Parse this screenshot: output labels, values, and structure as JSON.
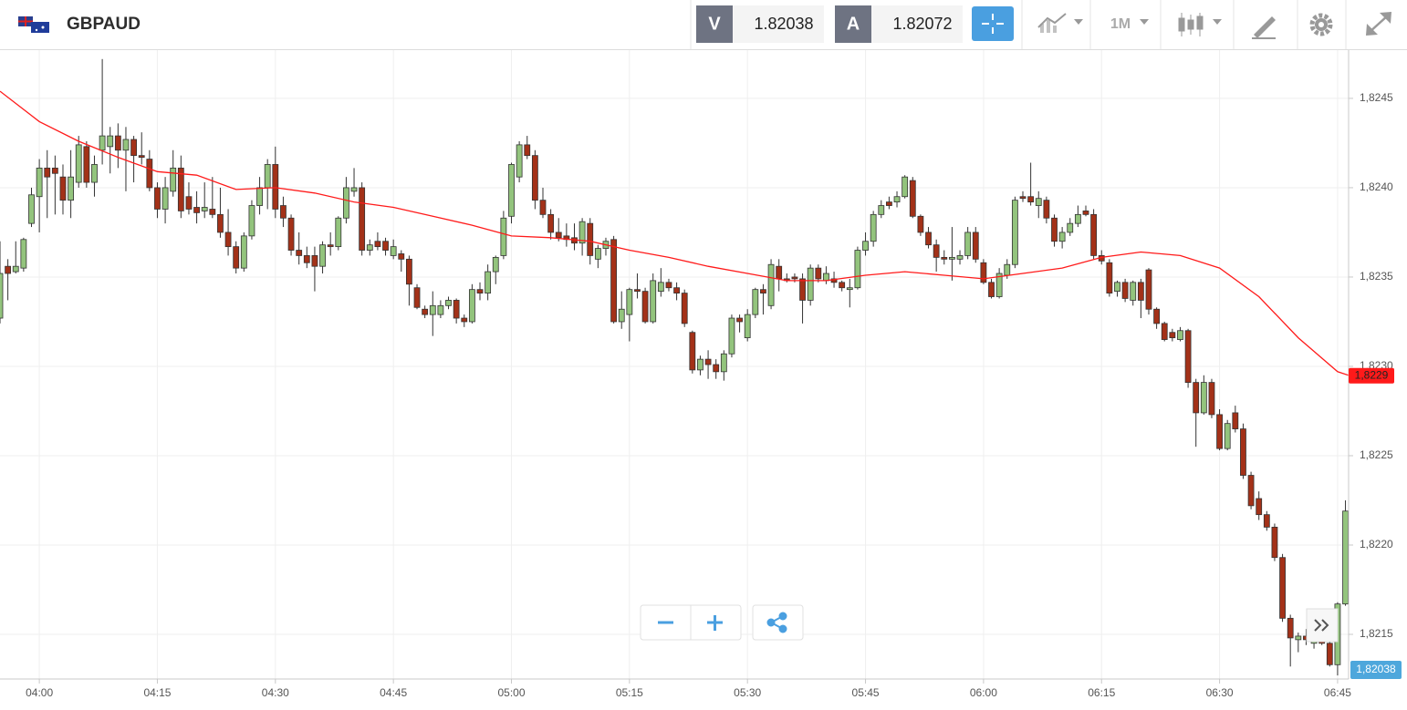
{
  "header": {
    "symbol": "GBPAUD",
    "bid_label": "V",
    "bid": "1.82038",
    "ask_label": "A",
    "ask": "1.82072",
    "timeframe": "1M"
  },
  "chart_data": {
    "type": "candlestick",
    "xlim": [
      235,
      406.4
    ],
    "ylim": [
      1.82125,
      1.82477
    ],
    "xticks": [
      {
        "value": 240,
        "label": "04:00"
      },
      {
        "value": 255,
        "label": "04:15"
      },
      {
        "value": 270,
        "label": "04:30"
      },
      {
        "value": 285,
        "label": "04:45"
      },
      {
        "value": 300,
        "label": "05:00"
      },
      {
        "value": 315,
        "label": "05:15"
      },
      {
        "value": 330,
        "label": "05:30"
      },
      {
        "value": 345,
        "label": "05:45"
      },
      {
        "value": 360,
        "label": "06:00"
      },
      {
        "value": 375,
        "label": "06:15"
      },
      {
        "value": 390,
        "label": "06:30"
      },
      {
        "value": 405,
        "label": "06:45"
      }
    ],
    "yticks": [
      {
        "value": 1.8215,
        "label": "1,8215"
      },
      {
        "value": 1.822,
        "label": "1,8220"
      },
      {
        "value": 1.8225,
        "label": "1,8225"
      },
      {
        "value": 1.823,
        "label": "1,8230"
      },
      {
        "value": 1.8235,
        "label": "1,8235"
      },
      {
        "value": 1.824,
        "label": "1,8240"
      },
      {
        "value": 1.8245,
        "label": "1,8245"
      }
    ],
    "grid": true,
    "up_color": "#93c47d",
    "down_color": "#a33118",
    "x": [
      235,
      236,
      237,
      238,
      239,
      240,
      241,
      242,
      243,
      244,
      245,
      246,
      247,
      248,
      249,
      250,
      251,
      252,
      253,
      254,
      255,
      256,
      257,
      258,
      259,
      260,
      261,
      262,
      263,
      264,
      265,
      266,
      267,
      268,
      269,
      270,
      271,
      272,
      273,
      274,
      275,
      276,
      277,
      278,
      279,
      280,
      281,
      282,
      283,
      284,
      285,
      286,
      287,
      288,
      289,
      290,
      291,
      292,
      293,
      294,
      295,
      296,
      297,
      298,
      299,
      300,
      301,
      302,
      303,
      304,
      305,
      306,
      307,
      308,
      309,
      310,
      311,
      312,
      313,
      314,
      315,
      316,
      317,
      318,
      319,
      320,
      321,
      322,
      323,
      324,
      325,
      326,
      327,
      328,
      329,
      330,
      331,
      332,
      333,
      334,
      335,
      336,
      337,
      338,
      339,
      340,
      341,
      342,
      343,
      344,
      345,
      346,
      347,
      348,
      349,
      350,
      351,
      352,
      353,
      354,
      355,
      356,
      357,
      358,
      359,
      360,
      361,
      362,
      363,
      364,
      365,
      366,
      367,
      368,
      369,
      370,
      371,
      372,
      373,
      374,
      375,
      376,
      377,
      378,
      379,
      380,
      381,
      382,
      383,
      384,
      385,
      386,
      387,
      388,
      389,
      390,
      391,
      392,
      393,
      394,
      395,
      396,
      397,
      398,
      399,
      400,
      401,
      402,
      403,
      404,
      405,
      406
    ],
    "open": [
      1.82327,
      1.82356,
      1.82353,
      1.82355,
      1.8238,
      1.82395,
      1.82411,
      1.82411,
      1.82406,
      1.82393,
      1.82403,
      1.82423,
      1.82403,
      1.82421,
      1.82423,
      1.82429,
      1.82421,
      1.82427,
      1.82418,
      1.82416,
      1.824,
      1.82388,
      1.82398,
      1.82411,
      1.82395,
      1.82389,
      1.82387,
      1.82388,
      1.82385,
      1.82375,
      1.82367,
      1.82355,
      1.82373,
      1.8239,
      1.824,
      1.82413,
      1.8239,
      1.82383,
      1.82365,
      1.82362,
      1.82362,
      1.82356,
      1.82368,
      1.82367,
      1.82383,
      1.82398,
      1.824,
      1.82365,
      1.8237,
      1.8237,
      1.82362,
      1.82363,
      1.8236,
      1.82344,
      1.82332,
      1.82329,
      1.82329,
      1.82334,
      1.82337,
      1.82327,
      1.82325,
      1.82343,
      1.82341,
      1.82353,
      1.82362,
      1.82384,
      1.82406,
      1.82424,
      1.82418,
      1.82393,
      1.82385,
      1.82375,
      1.82373,
      1.82372,
      1.82369,
      1.8238,
      1.8236,
      1.82366,
      1.82371,
      1.82325,
      1.82329,
      1.82343,
      1.82342,
      1.82325,
      1.82342,
      1.82347,
      1.82344,
      1.82341,
      1.82319,
      1.82298,
      1.82304,
      1.82301,
      1.82297,
      1.82307,
      1.82327,
      1.82316,
      1.82329,
      1.82343,
      1.82334,
      1.82356,
      1.82349,
      1.8235,
      1.82349,
      1.82337,
      1.82355,
      1.82348,
      1.82349,
      1.82347,
      1.82343,
      1.82344,
      1.82365,
      1.8237,
      1.82385,
      1.82392,
      1.82392,
      1.82395,
      1.82404,
      1.82384,
      1.82375,
      1.82368,
      1.82361,
      1.8236,
      1.8236,
      1.82362,
      1.82375,
      1.82358,
      1.82347,
      1.82339,
      1.82351,
      1.82357,
      1.82395,
      1.82395,
      1.8239,
      1.82393,
      1.82383,
      1.8237,
      1.82375,
      1.8238,
      1.82387,
      1.82385,
      1.82362,
      1.82358,
      1.82342,
      1.82347,
      1.82337,
      1.82347,
      1.82354,
      1.82332,
      1.82324,
      1.82319,
      1.82315,
      1.8232,
      1.82291,
      1.82274,
      1.82291,
      1.82273,
      1.82254,
      1.82274,
      1.82265,
      1.82239,
      1.82226,
      1.82217,
      1.8221,
      1.82193,
      1.82159,
      1.82147,
      1.82149,
      1.82145,
      1.82148,
      1.82145,
      1.82133,
      1.82167
    ],
    "high": [
      1.8237,
      1.8236,
      1.8237,
      1.82372,
      1.824,
      1.82416,
      1.82421,
      1.82418,
      1.82413,
      1.82421,
      1.82429,
      1.82426,
      1.82418,
      1.82472,
      1.82434,
      1.82436,
      1.82434,
      1.82429,
      1.82431,
      1.82421,
      1.82403,
      1.82406,
      1.82421,
      1.82418,
      1.82403,
      1.82398,
      1.82403,
      1.82406,
      1.824,
      1.82388,
      1.8237,
      1.82375,
      1.82393,
      1.82406,
      1.82416,
      1.82423,
      1.82395,
      1.82385,
      1.82375,
      1.82367,
      1.82367,
      1.8237,
      1.82375,
      1.82384,
      1.82406,
      1.82411,
      1.82403,
      1.82371,
      1.82375,
      1.82372,
      1.82371,
      1.82365,
      1.82362,
      1.82346,
      1.82334,
      1.82342,
      1.82337,
      1.82339,
      1.82338,
      1.82329,
      1.82346,
      1.82347,
      1.82357,
      1.82362,
      1.82387,
      1.82414,
      1.82426,
      1.82429,
      1.82421,
      1.824,
      1.82388,
      1.82383,
      1.8238,
      1.8238,
      1.82383,
      1.82383,
      1.82368,
      1.82372,
      1.82373,
      1.82342,
      1.82344,
      1.82352,
      1.82344,
      1.82352,
      1.82355,
      1.82349,
      1.82347,
      1.82343,
      1.8232,
      1.82306,
      1.82309,
      1.82304,
      1.82309,
      1.82329,
      1.82329,
      1.82332,
      1.82344,
      1.82346,
      1.8236,
      1.8236,
      1.82352,
      1.82352,
      1.82352,
      1.82357,
      1.82357,
      1.82356,
      1.82353,
      1.82348,
      1.82349,
      1.82367,
      1.82375,
      1.82387,
      1.82393,
      1.82395,
      1.82398,
      1.82407,
      1.82406,
      1.82385,
      1.82378,
      1.82371,
      1.82365,
      1.82378,
      1.82365,
      1.82378,
      1.82378,
      1.8236,
      1.82349,
      1.82355,
      1.8236,
      1.82395,
      1.82398,
      1.82414,
      1.82398,
      1.82395,
      1.82385,
      1.82378,
      1.82383,
      1.8239,
      1.8239,
      1.82388,
      1.82365,
      1.8236,
      1.82348,
      1.82349,
      1.82348,
      1.82349,
      1.82355,
      1.82333,
      1.82325,
      1.82321,
      1.82322,
      1.82321,
      1.82293,
      1.82295,
      1.82293,
      1.82276,
      1.8227,
      1.82278,
      1.82268,
      1.82241,
      1.8223,
      1.82219,
      1.82212,
      1.82195,
      1.82161,
      1.82151,
      1.82153,
      1.82151,
      1.82151,
      1.82148,
      1.82168,
      1.82225
    ],
    "low": [
      1.82324,
      1.82337,
      1.82352,
      1.82353,
      1.82378,
      1.82375,
      1.82383,
      1.82385,
      1.82385,
      1.82383,
      1.824,
      1.824,
      1.82395,
      1.82413,
      1.82408,
      1.82411,
      1.82398,
      1.82403,
      1.82413,
      1.82398,
      1.82383,
      1.8238,
      1.82395,
      1.82383,
      1.82385,
      1.8238,
      1.82383,
      1.82383,
      1.82372,
      1.82362,
      1.82352,
      1.82353,
      1.82371,
      1.82385,
      1.82388,
      1.82383,
      1.82378,
      1.82362,
      1.82357,
      1.82355,
      1.82342,
      1.82352,
      1.82362,
      1.82365,
      1.8238,
      1.82395,
      1.82362,
      1.82362,
      1.82365,
      1.82362,
      1.8236,
      1.82353,
      1.82334,
      1.82332,
      1.82327,
      1.82317,
      1.82327,
      1.82332,
      1.82324,
      1.82322,
      1.82324,
      1.82337,
      1.82337,
      1.82346,
      1.8236,
      1.8238,
      1.82403,
      1.82416,
      1.82388,
      1.82383,
      1.82371,
      1.8237,
      1.82367,
      1.82365,
      1.82362,
      1.82357,
      1.82355,
      1.82362,
      1.82324,
      1.82321,
      1.82314,
      1.82338,
      1.82324,
      1.82324,
      1.82339,
      1.82342,
      1.82337,
      1.82322,
      1.82296,
      1.82295,
      1.82293,
      1.82293,
      1.82292,
      1.82305,
      1.82319,
      1.82314,
      1.82327,
      1.82329,
      1.82332,
      1.82342,
      1.82347,
      1.82347,
      1.82324,
      1.82334,
      1.82347,
      1.82346,
      1.82344,
      1.82342,
      1.82333,
      1.82343,
      1.82362,
      1.82367,
      1.82383,
      1.82388,
      1.82389,
      1.82394,
      1.82383,
      1.82373,
      1.82366,
      1.82353,
      1.82357,
      1.82348,
      1.82357,
      1.8236,
      1.82358,
      1.82346,
      1.82338,
      1.82338,
      1.82349,
      1.82355,
      1.82392,
      1.8239,
      1.82383,
      1.8238,
      1.82367,
      1.82366,
      1.82373,
      1.82378,
      1.82384,
      1.8236,
      1.82357,
      1.82339,
      1.82339,
      1.82336,
      1.82334,
      1.82327,
      1.82329,
      1.82321,
      1.82314,
      1.82314,
      1.82314,
      1.82288,
      1.82255,
      1.82273,
      1.82271,
      1.82253,
      1.82253,
      1.82263,
      1.82237,
      1.8222,
      1.82214,
      1.82208,
      1.82191,
      1.82157,
      1.82132,
      1.8214,
      1.82144,
      1.82142,
      1.82144,
      1.82132,
      1.82127,
      1.82166
    ],
    "close": [
      1.82352,
      1.82352,
      1.82356,
      1.82371,
      1.82396,
      1.82411,
      1.82406,
      1.82408,
      1.82393,
      1.82406,
      1.82424,
      1.82403,
      1.82413,
      1.82429,
      1.82429,
      1.82421,
      1.82427,
      1.82418,
      1.82417,
      1.824,
      1.82388,
      1.824,
      1.82411,
      1.82387,
      1.82388,
      1.82386,
      1.82389,
      1.82385,
      1.82375,
      1.82367,
      1.82355,
      1.82373,
      1.8239,
      1.824,
      1.82413,
      1.82388,
      1.82383,
      1.82365,
      1.82362,
      1.82358,
      1.82356,
      1.82368,
      1.82367,
      1.82383,
      1.824,
      1.824,
      1.82365,
      1.82368,
      1.82367,
      1.82365,
      1.82367,
      1.8236,
      1.82346,
      1.82333,
      1.82329,
      1.82334,
      1.82334,
      1.82337,
      1.82327,
      1.82325,
      1.82343,
      1.82341,
      1.82353,
      1.82361,
      1.82383,
      1.82413,
      1.82424,
      1.82418,
      1.82393,
      1.82385,
      1.82375,
      1.82372,
      1.82371,
      1.82369,
      1.82381,
      1.82362,
      1.82366,
      1.8237,
      1.82325,
      1.82332,
      1.82343,
      1.82342,
      1.82325,
      1.82348,
      1.82347,
      1.82344,
      1.82341,
      1.82324,
      1.82298,
      1.82304,
      1.82301,
      1.82297,
      1.82307,
      1.82327,
      1.82325,
      1.82329,
      1.82343,
      1.82341,
      1.82357,
      1.82349,
      1.82348,
      1.82349,
      1.82337,
      1.82355,
      1.82349,
      1.82352,
      1.82347,
      1.82344,
      1.82344,
      1.82365,
      1.8237,
      1.82385,
      1.8239,
      1.8239,
      1.82395,
      1.82406,
      1.82384,
      1.82375,
      1.82368,
      1.82361,
      1.8236,
      1.82361,
      1.82362,
      1.82375,
      1.8236,
      1.82347,
      1.82339,
      1.82352,
      1.82357,
      1.82393,
      1.82394,
      1.82392,
      1.82394,
      1.82383,
      1.8237,
      1.82375,
      1.8238,
      1.82385,
      1.82385,
      1.82362,
      1.82359,
      1.82341,
      1.82347,
      1.82338,
      1.82347,
      1.82337,
      1.82332,
      1.82324,
      1.82315,
      1.82316,
      1.8232,
      1.82291,
      1.82274,
      1.82291,
      1.82273,
      1.82254,
      1.82268,
      1.82265,
      1.82239,
      1.82222,
      1.82217,
      1.8221,
      1.82193,
      1.82159,
      1.82148,
      1.82149,
      1.82147,
      1.82148,
      1.82145,
      1.82133,
      1.82167,
      1.82219
    ],
    "moving_average": {
      "color": "#ff1a1a",
      "label": "1,8229",
      "x": [
        235,
        240,
        245,
        250,
        255,
        260,
        265,
        270,
        275,
        280,
        285,
        290,
        295,
        300,
        305,
        310,
        315,
        320,
        325,
        330,
        335,
        340,
        345,
        350,
        355,
        360,
        365,
        370,
        375,
        380,
        385,
        390,
        395,
        400,
        405,
        406.4
      ],
      "values": [
        1.82454,
        1.82437,
        1.82426,
        1.82417,
        1.82409,
        1.82407,
        1.82399,
        1.824,
        1.82397,
        1.82392,
        1.82389,
        1.82384,
        1.82379,
        1.82373,
        1.82372,
        1.8237,
        1.82365,
        1.82361,
        1.82356,
        1.82352,
        1.82348,
        1.82348,
        1.82351,
        1.82353,
        1.82351,
        1.82349,
        1.82352,
        1.82355,
        1.82361,
        1.82364,
        1.82362,
        1.82355,
        1.82339,
        1.82316,
        1.82297,
        1.82295
      ]
    },
    "last_price_label": "1,82038"
  }
}
